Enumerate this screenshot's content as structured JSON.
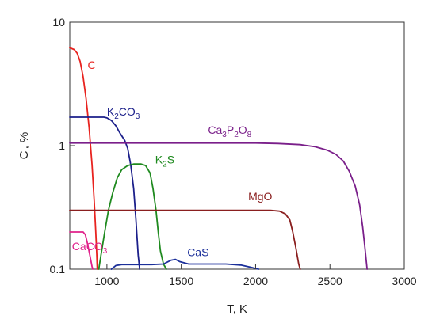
{
  "chart_data": {
    "type": "line",
    "xlabel": "T, K",
    "ylabel": "C",
    "ylabel_sub": "i",
    "ylabel_suffix": ", %",
    "xlim": [
      750,
      3000
    ],
    "ylim": [
      0.1,
      10
    ],
    "yscale": "log",
    "grid": false,
    "x_ticks": [
      1000,
      1500,
      2000,
      2500,
      3000
    ],
    "y_ticks": [
      0.1,
      1,
      10
    ],
    "series": [
      {
        "name": "C",
        "label_parts": [
          {
            "t": "C"
          }
        ],
        "color": "#e8231f",
        "points": [
          [
            750,
            6.2
          ],
          [
            780,
            6.0
          ],
          [
            800,
            5.6
          ],
          [
            820,
            4.8
          ],
          [
            840,
            3.6
          ],
          [
            860,
            2.4
          ],
          [
            880,
            1.4
          ],
          [
            900,
            0.7
          ],
          [
            915,
            0.35
          ],
          [
            925,
            0.2
          ],
          [
            932,
            0.13
          ],
          [
            935,
            0.1
          ]
        ]
      },
      {
        "name": "K2CO3",
        "label_parts": [
          {
            "t": "K"
          },
          {
            "t": "2",
            "sub": true
          },
          {
            "t": "CO"
          },
          {
            "t": "3",
            "sub": true
          }
        ],
        "color": "#1b1f8a",
        "points": [
          [
            750,
            1.7
          ],
          [
            980,
            1.7
          ],
          [
            1000,
            1.68
          ],
          [
            1030,
            1.6
          ],
          [
            1060,
            1.45
          ],
          [
            1090,
            1.25
          ],
          [
            1120,
            1.1
          ],
          [
            1140,
            0.95
          ],
          [
            1160,
            0.7
          ],
          [
            1180,
            0.45
          ],
          [
            1195,
            0.25
          ],
          [
            1210,
            0.13
          ],
          [
            1220,
            0.1
          ]
        ]
      },
      {
        "name": "K2S",
        "label_parts": [
          {
            "t": "K"
          },
          {
            "t": "2",
            "sub": true
          },
          {
            "t": "S"
          }
        ],
        "color": "#1f8a1f",
        "points": [
          [
            945,
            0.1
          ],
          [
            960,
            0.13
          ],
          [
            985,
            0.2
          ],
          [
            1010,
            0.3
          ],
          [
            1040,
            0.42
          ],
          [
            1070,
            0.55
          ],
          [
            1100,
            0.64
          ],
          [
            1140,
            0.69
          ],
          [
            1180,
            0.71
          ],
          [
            1230,
            0.71
          ],
          [
            1260,
            0.69
          ],
          [
            1290,
            0.6
          ],
          [
            1310,
            0.45
          ],
          [
            1330,
            0.3
          ],
          [
            1345,
            0.2
          ],
          [
            1360,
            0.14
          ],
          [
            1380,
            0.11
          ],
          [
            1400,
            0.1
          ]
        ]
      },
      {
        "name": "Ca3P2O8",
        "label_parts": [
          {
            "t": "Ca"
          },
          {
            "t": "3",
            "sub": true
          },
          {
            "t": "P"
          },
          {
            "t": "2",
            "sub": true
          },
          {
            "t": "O"
          },
          {
            "t": "8",
            "sub": true
          }
        ],
        "color": "#7a1f8a",
        "points": [
          [
            750,
            1.05
          ],
          [
            2000,
            1.05
          ],
          [
            2150,
            1.04
          ],
          [
            2300,
            1.02
          ],
          [
            2400,
            0.98
          ],
          [
            2480,
            0.92
          ],
          [
            2540,
            0.85
          ],
          [
            2590,
            0.75
          ],
          [
            2630,
            0.62
          ],
          [
            2670,
            0.47
          ],
          [
            2700,
            0.33
          ],
          [
            2720,
            0.22
          ],
          [
            2735,
            0.15
          ],
          [
            2750,
            0.1
          ]
        ]
      },
      {
        "name": "MgO",
        "label_parts": [
          {
            "t": "MgO"
          }
        ],
        "color": "#8a1f1f",
        "points": [
          [
            750,
            0.3
          ],
          [
            2100,
            0.3
          ],
          [
            2160,
            0.295
          ],
          [
            2200,
            0.28
          ],
          [
            2230,
            0.25
          ],
          [
            2250,
            0.2
          ],
          [
            2270,
            0.15
          ],
          [
            2290,
            0.11
          ],
          [
            2300,
            0.1
          ]
        ]
      },
      {
        "name": "CaCO3",
        "label_parts": [
          {
            "t": "CaCO"
          },
          {
            "t": "3",
            "sub": true
          }
        ],
        "color": "#e0208a",
        "points": [
          [
            750,
            0.2
          ],
          [
            840,
            0.2
          ],
          [
            855,
            0.19
          ],
          [
            870,
            0.16
          ],
          [
            885,
            0.13
          ],
          [
            900,
            0.105
          ],
          [
            905,
            0.1
          ]
        ]
      },
      {
        "name": "CaS",
        "label_parts": [
          {
            "t": "CaS"
          }
        ],
        "color": "#1b2f9a",
        "points": [
          [
            1030,
            0.1
          ],
          [
            1060,
            0.107
          ],
          [
            1100,
            0.109
          ],
          [
            1300,
            0.109
          ],
          [
            1380,
            0.11
          ],
          [
            1430,
            0.118
          ],
          [
            1460,
            0.12
          ],
          [
            1490,
            0.115
          ],
          [
            1550,
            0.11
          ],
          [
            1800,
            0.11
          ],
          [
            1900,
            0.108
          ],
          [
            1960,
            0.104
          ],
          [
            2020,
            0.1
          ]
        ]
      }
    ],
    "labels": [
      {
        "series": "C",
        "x": 870,
        "y": 4.2
      },
      {
        "series": "K2CO3",
        "x": 1000,
        "y": 1.75
      },
      {
        "series": "Ca3P2O8",
        "x": 1680,
        "y": 1.25
      },
      {
        "series": "K2S",
        "x": 1325,
        "y": 0.72
      },
      {
        "series": "MgO",
        "x": 1950,
        "y": 0.36
      },
      {
        "series": "CaCO3",
        "x": 765,
        "y": 0.142
      },
      {
        "series": "CaS",
        "x": 1540,
        "y": 0.128
      }
    ]
  }
}
